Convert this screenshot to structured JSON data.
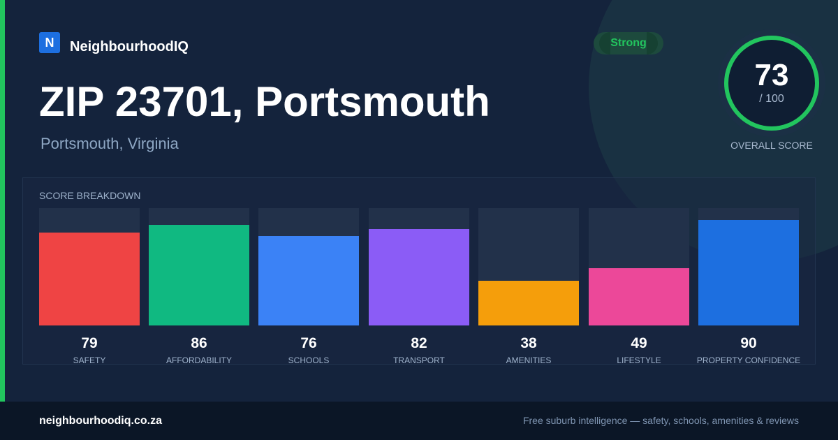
{
  "brand": {
    "logo_letter": "N",
    "name": "NeighbourhoodIQ"
  },
  "header": {
    "title": "ZIP 23701, Portsmouth",
    "subtitle": "Portsmouth, Virginia"
  },
  "status_badge": {
    "label": "Strong",
    "color": "#22c55e"
  },
  "overall_score": {
    "value": "73",
    "out_of": "/ 100",
    "caption": "OVERALL SCORE",
    "fraction": 0.73,
    "ring_color": "#22c55e"
  },
  "breakdown": {
    "title": "SCORE BREAKDOWN",
    "items": [
      {
        "label": "SAFETY",
        "value": "79",
        "score": 79,
        "color": "#ef4444"
      },
      {
        "label": "AFFORDABILITY",
        "value": "86",
        "score": 86,
        "color": "#10b981"
      },
      {
        "label": "SCHOOLS",
        "value": "76",
        "score": 76,
        "color": "#3b82f6"
      },
      {
        "label": "TRANSPORT",
        "value": "82",
        "score": 82,
        "color": "#8b5cf6"
      },
      {
        "label": "AMENITIES",
        "value": "38",
        "score": 38,
        "color": "#f59e0b"
      },
      {
        "label": "LIFESTYLE",
        "value": "49",
        "score": 49,
        "color": "#ec4899"
      },
      {
        "label": "PROPERTY CONFIDENCE",
        "value": "90",
        "score": 90,
        "color": "#1d6fe0"
      }
    ]
  },
  "footer": {
    "url": "neighbourhoodiq.co.za",
    "tagline": "Free suburb intelligence — safety, schools, amenities & reviews"
  },
  "colors": {
    "accent": "#22c55e",
    "brand": "#1d6fe0",
    "background": "#14233c"
  }
}
